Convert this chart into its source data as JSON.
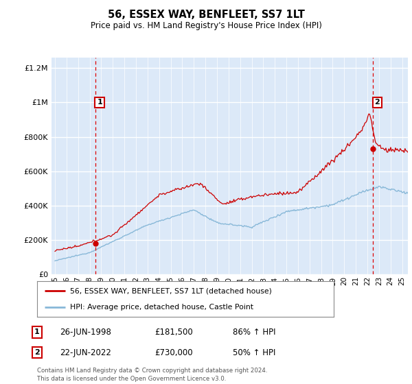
{
  "title": "56, ESSEX WAY, BENFLEET, SS7 1LT",
  "subtitle": "Price paid vs. HM Land Registry's House Price Index (HPI)",
  "ylabel_ticks": [
    "£0",
    "£200K",
    "£400K",
    "£600K",
    "£800K",
    "£1M",
    "£1.2M"
  ],
  "ytick_values": [
    0,
    200000,
    400000,
    600000,
    800000,
    1000000,
    1200000
  ],
  "ylim": [
    0,
    1260000
  ],
  "xlim_start": 1994.7,
  "xlim_end": 2025.5,
  "plot_bg_color": "#dce9f8",
  "grid_color": "#ffffff",
  "sale1_date": 1998.48,
  "sale1_price": 181500,
  "sale2_date": 2022.47,
  "sale2_price": 730000,
  "legend_label_red": "56, ESSEX WAY, BENFLEET, SS7 1LT (detached house)",
  "legend_label_blue": "HPI: Average price, detached house, Castle Point",
  "annotation1_label": "1",
  "annotation1_date": "26-JUN-1998",
  "annotation1_price": "£181,500",
  "annotation1_hpi": "86% ↑ HPI",
  "annotation2_label": "2",
  "annotation2_date": "22-JUN-2022",
  "annotation2_price": "£730,000",
  "annotation2_hpi": "50% ↑ HPI",
  "footnote": "Contains HM Land Registry data © Crown copyright and database right 2024.\nThis data is licensed under the Open Government Licence v3.0.",
  "xtick_years": [
    1995,
    1996,
    1997,
    1998,
    1999,
    2000,
    2001,
    2002,
    2003,
    2004,
    2005,
    2006,
    2007,
    2008,
    2009,
    2010,
    2011,
    2012,
    2013,
    2014,
    2015,
    2016,
    2017,
    2018,
    2019,
    2020,
    2021,
    2022,
    2023,
    2024,
    2025
  ],
  "xtick_labels": [
    "95",
    "96",
    "97",
    "98",
    "99",
    "00",
    "01",
    "02",
    "03",
    "04",
    "05",
    "06",
    "07",
    "08",
    "09",
    "10",
    "11",
    "12",
    "13",
    "14",
    "15",
    "16",
    "17",
    "18",
    "19",
    "20",
    "21",
    "22",
    "23",
    "24",
    "25"
  ],
  "red_line_color": "#cc0000",
  "blue_line_color": "#88b8d8",
  "dashed_line_color": "#dd0000",
  "dashed_linewidth": 0.9
}
